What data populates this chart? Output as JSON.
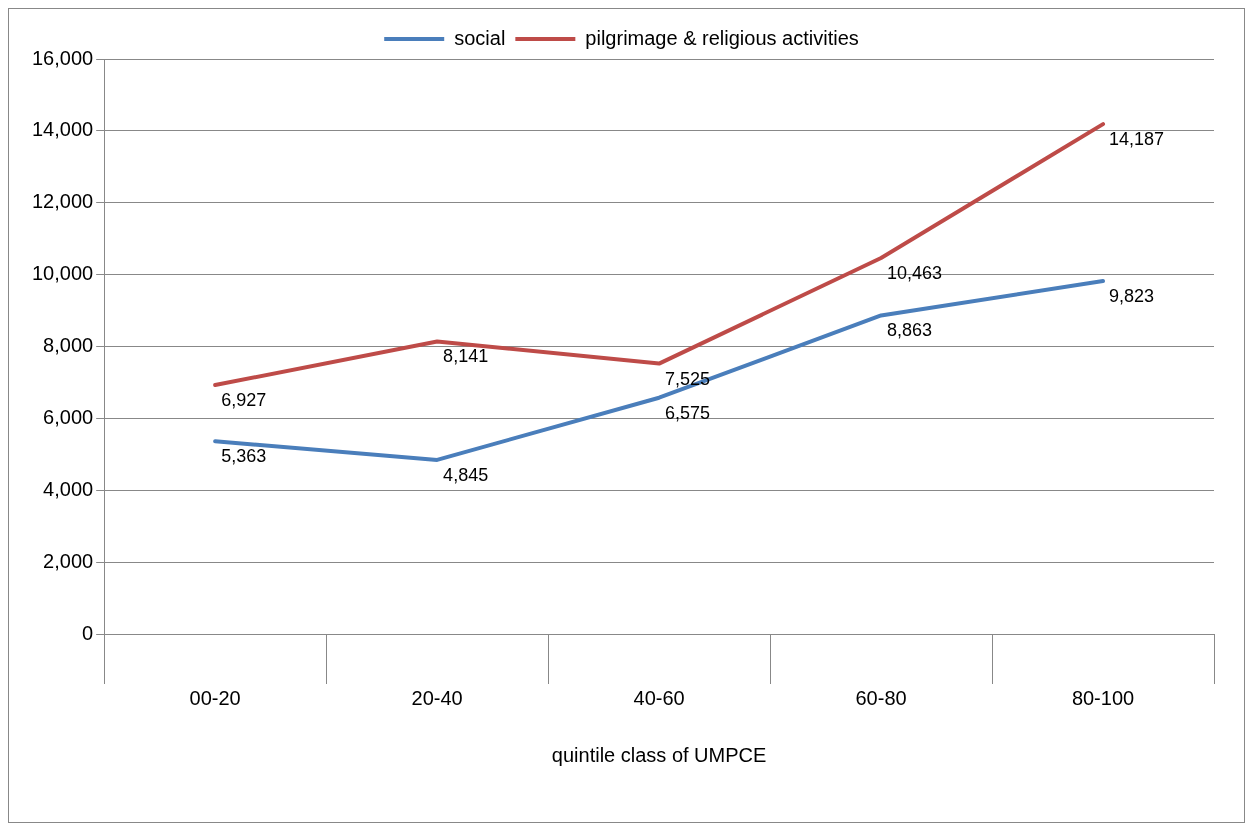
{
  "chart_data": {
    "type": "line",
    "xlabel": "quintile class of UMPCE",
    "categories": [
      "00-20",
      "20-40",
      "40-60",
      "60-80",
      "80-100"
    ],
    "series": [
      {
        "name": "social",
        "color": "#4a7ebb",
        "values": [
          5363,
          4845,
          6575,
          8863,
          9823
        ],
        "value_labels": [
          "5,363",
          "4,845",
          "6,575",
          "8,863",
          "9,823"
        ]
      },
      {
        "name": "pilgrimage & religious activities",
        "color": "#be4b48",
        "values": [
          6927,
          8141,
          7525,
          10463,
          14187
        ],
        "value_labels": [
          "6,927",
          "8,141",
          "7,525",
          "10,463",
          "14,187"
        ]
      }
    ],
    "ylim": [
      0,
      16000
    ],
    "yticks": [
      {
        "value": 0,
        "label": "0"
      },
      {
        "value": 2000,
        "label": "2,000"
      },
      {
        "value": 4000,
        "label": "4,000"
      },
      {
        "value": 6000,
        "label": "6,000"
      },
      {
        "value": 8000,
        "label": "8,000"
      },
      {
        "value": 10000,
        "label": "10,000"
      },
      {
        "value": 12000,
        "label": "12,000"
      },
      {
        "value": 14000,
        "label": "14,000"
      },
      {
        "value": 16000,
        "label": "16,000"
      }
    ],
    "grid": "y",
    "legend": "top",
    "marker": "none",
    "line_style": "solid"
  }
}
